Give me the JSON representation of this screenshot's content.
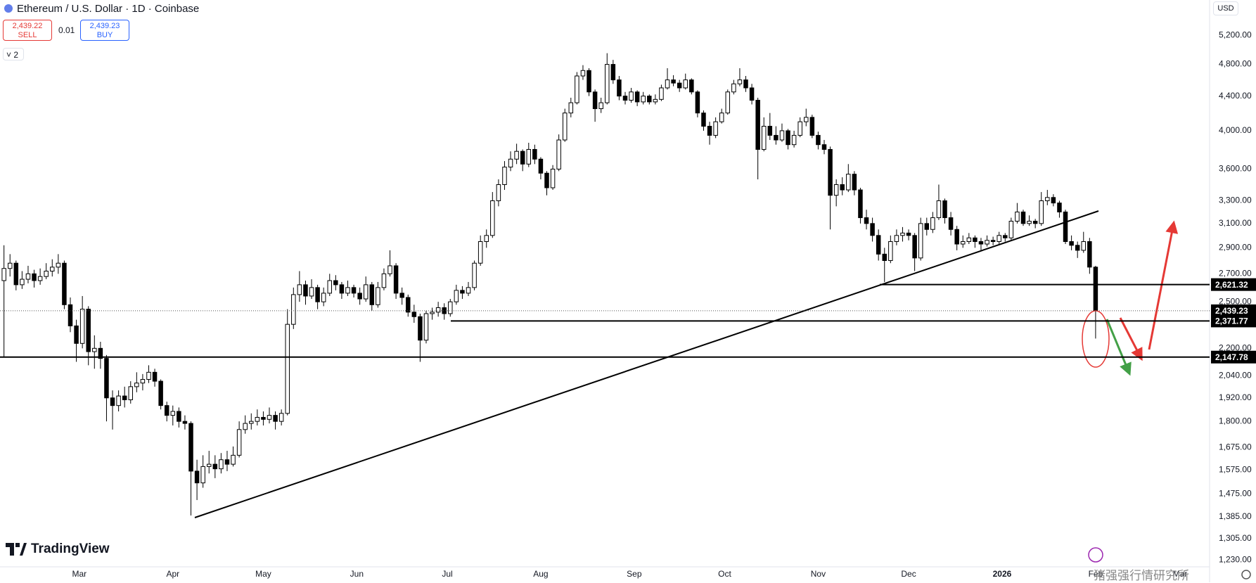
{
  "header": {
    "symbol_title": "Ethereum / U.S. Dollar · 1D · Coinbase",
    "sell": {
      "price": "2,439.22",
      "label": "SELL"
    },
    "spread": "0.01",
    "buy": {
      "price": "2,439.23",
      "label": "BUY"
    },
    "indicators": "2"
  },
  "branding": {
    "logo": "TradingView",
    "watermark": "猪强强行情研究所"
  },
  "chart_data": {
    "type": "candlestick",
    "title": "Ethereum / U.S. Dollar · 1D · Coinbase",
    "currency": "USD",
    "log_scale": true,
    "grid": false,
    "up_color": "#ffffff",
    "down_color": "#000000",
    "outline_color": "#000000",
    "xlim": [
      -0.16,
      200.4
    ],
    "ylim": [
      1207,
      5729
    ],
    "xticks": [
      {
        "value": 13,
        "label": "Mar"
      },
      {
        "value": 28.5,
        "label": "Apr"
      },
      {
        "value": 43.5,
        "label": "May"
      },
      {
        "value": 59,
        "label": "Jun"
      },
      {
        "value": 74,
        "label": "Jul"
      },
      {
        "value": 89.5,
        "label": "Aug"
      },
      {
        "value": 105,
        "label": "Sep"
      },
      {
        "value": 120,
        "label": "Oct"
      },
      {
        "value": 135.5,
        "label": "Nov"
      },
      {
        "value": 150.5,
        "label": "Dec"
      },
      {
        "value": 166,
        "label": "2026",
        "bold": true
      },
      {
        "value": 181.5,
        "label": "Feb"
      },
      {
        "value": 195.5,
        "label": "Mar"
      }
    ],
    "yticks": [
      {
        "value": 5200,
        "label": "5,200.00"
      },
      {
        "value": 4800,
        "label": "4,800.00"
      },
      {
        "value": 4400,
        "label": "4,400.00"
      },
      {
        "value": 4000,
        "label": "4,000.00"
      },
      {
        "value": 3600,
        "label": "3,600.00"
      },
      {
        "value": 3300,
        "label": "3,300.00"
      },
      {
        "value": 3100,
        "label": "3,100.00"
      },
      {
        "value": 2900,
        "label": "2,900.00"
      },
      {
        "value": 2700,
        "label": "2,700.00"
      },
      {
        "value": 2500,
        "label": "2,500.00"
      },
      {
        "value": 2200,
        "label": "2,200.00"
      },
      {
        "value": 2040,
        "label": "2,040.00"
      },
      {
        "value": 1920,
        "label": "1,920.00"
      },
      {
        "value": 1800,
        "label": "1,800.00"
      },
      {
        "value": 1675,
        "label": "1,675.00"
      },
      {
        "value": 1575,
        "label": "1,575.00"
      },
      {
        "value": 1475,
        "label": "1,475.00"
      },
      {
        "value": 1385,
        "label": "1,385.00"
      },
      {
        "value": 1305,
        "label": "1,305.00"
      },
      {
        "value": 1230,
        "label": "1,230.00"
      }
    ],
    "levels": [
      {
        "value": 2621.32,
        "label": "2,621.32"
      },
      {
        "value": 2371.77,
        "label": "2,371.77"
      },
      {
        "value": 2147.78,
        "label": "2,147.78"
      }
    ],
    "last_price": {
      "value": 2439.23,
      "label": "2,439.23"
    },
    "candles": [
      [
        2650,
        2920,
        2150,
        2740
      ],
      [
        2740,
        2850,
        2680,
        2780
      ],
      [
        2780,
        2800,
        2580,
        2620
      ],
      [
        2620,
        2720,
        2590,
        2660
      ],
      [
        2660,
        2760,
        2630,
        2700
      ],
      [
        2700,
        2730,
        2600,
        2650
      ],
      [
        2650,
        2740,
        2620,
        2680
      ],
      [
        2680,
        2780,
        2660,
        2720
      ],
      [
        2720,
        2810,
        2680,
        2750
      ],
      [
        2750,
        2850,
        2700,
        2780
      ],
      [
        2780,
        2800,
        2450,
        2480
      ],
      [
        2480,
        2530,
        2300,
        2340
      ],
      [
        2340,
        2380,
        2120,
        2230
      ],
      [
        2230,
        2540,
        2200,
        2450
      ],
      [
        2450,
        2470,
        2100,
        2180
      ],
      [
        2180,
        2280,
        2080,
        2200
      ],
      [
        2200,
        2240,
        2080,
        2140
      ],
      [
        2140,
        2160,
        1800,
        1920
      ],
      [
        1920,
        1960,
        1760,
        1880
      ],
      [
        1880,
        1960,
        1850,
        1930
      ],
      [
        1930,
        1980,
        1870,
        1910
      ],
      [
        1910,
        2010,
        1890,
        1980
      ],
      [
        1980,
        2060,
        1950,
        2000
      ],
      [
        2000,
        2050,
        1960,
        2020
      ],
      [
        2020,
        2100,
        2000,
        2060
      ],
      [
        2060,
        2080,
        1980,
        2010
      ],
      [
        2010,
        2020,
        1860,
        1880
      ],
      [
        1880,
        1900,
        1800,
        1830
      ],
      [
        1830,
        1880,
        1780,
        1850
      ],
      [
        1850,
        1870,
        1770,
        1800
      ],
      [
        1800,
        1830,
        1760,
        1790
      ],
      [
        1790,
        1800,
        1390,
        1570
      ],
      [
        1570,
        1620,
        1450,
        1520
      ],
      [
        1520,
        1640,
        1500,
        1590
      ],
      [
        1590,
        1660,
        1560,
        1600
      ],
      [
        1600,
        1640,
        1540,
        1580
      ],
      [
        1580,
        1650,
        1560,
        1620
      ],
      [
        1620,
        1660,
        1570,
        1600
      ],
      [
        1600,
        1680,
        1590,
        1640
      ],
      [
        1640,
        1800,
        1630,
        1760
      ],
      [
        1760,
        1830,
        1740,
        1790
      ],
      [
        1790,
        1840,
        1760,
        1800
      ],
      [
        1800,
        1860,
        1780,
        1820
      ],
      [
        1820,
        1850,
        1780,
        1810
      ],
      [
        1810,
        1870,
        1790,
        1830
      ],
      [
        1830,
        1850,
        1760,
        1800
      ],
      [
        1800,
        1860,
        1780,
        1840
      ],
      [
        1840,
        2450,
        1830,
        2350
      ],
      [
        2350,
        2600,
        2320,
        2550
      ],
      [
        2550,
        2720,
        2500,
        2620
      ],
      [
        2620,
        2650,
        2480,
        2540
      ],
      [
        2540,
        2660,
        2520,
        2600
      ],
      [
        2600,
        2620,
        2450,
        2500
      ],
      [
        2500,
        2600,
        2470,
        2560
      ],
      [
        2560,
        2700,
        2540,
        2650
      ],
      [
        2650,
        2690,
        2580,
        2620
      ],
      [
        2620,
        2640,
        2520,
        2560
      ],
      [
        2560,
        2650,
        2540,
        2600
      ],
      [
        2600,
        2620,
        2530,
        2560
      ],
      [
        2560,
        2600,
        2480,
        2520
      ],
      [
        2520,
        2680,
        2500,
        2620
      ],
      [
        2620,
        2640,
        2440,
        2480
      ],
      [
        2480,
        2640,
        2460,
        2600
      ],
      [
        2600,
        2740,
        2580,
        2700
      ],
      [
        2700,
        2880,
        2680,
        2760
      ],
      [
        2760,
        2780,
        2520,
        2560
      ],
      [
        2560,
        2600,
        2480,
        2530
      ],
      [
        2530,
        2550,
        2400,
        2430
      ],
      [
        2430,
        2480,
        2360,
        2400
      ],
      [
        2400,
        2420,
        2120,
        2250
      ],
      [
        2250,
        2440,
        2230,
        2420
      ],
      [
        2420,
        2460,
        2380,
        2430
      ],
      [
        2430,
        2500,
        2400,
        2460
      ],
      [
        2460,
        2490,
        2380,
        2420
      ],
      [
        2420,
        2520,
        2400,
        2500
      ],
      [
        2500,
        2620,
        2480,
        2580
      ],
      [
        2580,
        2610,
        2520,
        2560
      ],
      [
        2560,
        2640,
        2540,
        2600
      ],
      [
        2600,
        2800,
        2580,
        2780
      ],
      [
        2780,
        3000,
        2760,
        2950
      ],
      [
        2950,
        3050,
        2900,
        3000
      ],
      [
        3000,
        3380,
        2980,
        3300
      ],
      [
        3300,
        3500,
        3250,
        3450
      ],
      [
        3450,
        3680,
        3400,
        3620
      ],
      [
        3620,
        3780,
        3580,
        3700
      ],
      [
        3700,
        3860,
        3650,
        3780
      ],
      [
        3780,
        3800,
        3580,
        3650
      ],
      [
        3650,
        3870,
        3620,
        3800
      ],
      [
        3800,
        3850,
        3650,
        3700
      ],
      [
        3700,
        3720,
        3500,
        3560
      ],
      [
        3560,
        3580,
        3350,
        3420
      ],
      [
        3420,
        3640,
        3400,
        3600
      ],
      [
        3600,
        3960,
        3580,
        3900
      ],
      [
        3900,
        4250,
        3880,
        4200
      ],
      [
        4200,
        4380,
        4150,
        4320
      ],
      [
        4320,
        4700,
        4300,
        4650
      ],
      [
        4650,
        4790,
        4600,
        4720
      ],
      [
        4720,
        4750,
        4400,
        4450
      ],
      [
        4450,
        4480,
        4100,
        4250
      ],
      [
        4250,
        4380,
        4200,
        4320
      ],
      [
        4320,
        4950,
        4300,
        4800
      ],
      [
        4800,
        4860,
        4550,
        4600
      ],
      [
        4600,
        4650,
        4350,
        4400
      ],
      [
        4400,
        4450,
        4300,
        4350
      ],
      [
        4350,
        4500,
        4320,
        4450
      ],
      [
        4450,
        4470,
        4280,
        4330
      ],
      [
        4330,
        4450,
        4300,
        4400
      ],
      [
        4400,
        4420,
        4300,
        4330
      ],
      [
        4330,
        4420,
        4300,
        4360
      ],
      [
        4360,
        4540,
        4340,
        4500
      ],
      [
        4500,
        4750,
        4480,
        4600
      ],
      [
        4600,
        4660,
        4520,
        4560
      ],
      [
        4560,
        4600,
        4450,
        4500
      ],
      [
        4500,
        4680,
        4480,
        4600
      ],
      [
        4600,
        4620,
        4420,
        4450
      ],
      [
        4450,
        4470,
        4150,
        4200
      ],
      [
        4200,
        4230,
        4000,
        4050
      ],
      [
        4050,
        4100,
        3850,
        3950
      ],
      [
        3950,
        4150,
        3920,
        4100
      ],
      [
        4100,
        4250,
        4080,
        4200
      ],
      [
        4200,
        4480,
        4180,
        4450
      ],
      [
        4450,
        4600,
        4420,
        4550
      ],
      [
        4550,
        4750,
        4520,
        4600
      ],
      [
        4600,
        4650,
        4450,
        4500
      ],
      [
        4500,
        4550,
        4300,
        4350
      ],
      [
        4350,
        4380,
        3500,
        3800
      ],
      [
        3800,
        4150,
        3780,
        4050
      ],
      [
        4050,
        4200,
        3900,
        3950
      ],
      [
        3950,
        4050,
        3850,
        3900
      ],
      [
        3900,
        4080,
        3880,
        4000
      ],
      [
        4000,
        4020,
        3800,
        3850
      ],
      [
        3850,
        4000,
        3820,
        3950
      ],
      [
        3950,
        4150,
        3930,
        4100
      ],
      [
        4100,
        4250,
        4050,
        4150
      ],
      [
        4150,
        4180,
        3920,
        3950
      ],
      [
        3950,
        3990,
        3800,
        3850
      ],
      [
        3850,
        3900,
        3750,
        3800
      ],
      [
        3800,
        3830,
        3050,
        3350
      ],
      [
        3350,
        3500,
        3250,
        3450
      ],
      [
        3450,
        3520,
        3350,
        3400
      ],
      [
        3400,
        3650,
        3380,
        3550
      ],
      [
        3550,
        3580,
        3350,
        3400
      ],
      [
        3400,
        3420,
        3100,
        3150
      ],
      [
        3150,
        3220,
        3050,
        3100
      ],
      [
        3100,
        3150,
        2950,
        3000
      ],
      [
        3000,
        3050,
        2800,
        2850
      ],
      [
        2850,
        2900,
        2640,
        2800
      ],
      [
        2800,
        3000,
        2780,
        2950
      ],
      [
        2950,
        3050,
        2920,
        3000
      ],
      [
        3000,
        3070,
        2950,
        3020
      ],
      [
        3020,
        3050,
        2960,
        3000
      ],
      [
        3000,
        3020,
        2720,
        2820
      ],
      [
        2820,
        3150,
        2800,
        3100
      ],
      [
        3100,
        3150,
        3000,
        3050
      ],
      [
        3050,
        3200,
        3020,
        3150
      ],
      [
        3150,
        3450,
        3130,
        3300
      ],
      [
        3300,
        3320,
        3100,
        3150
      ],
      [
        3150,
        3200,
        3000,
        3050
      ],
      [
        3050,
        3080,
        2880,
        2930
      ],
      [
        2930,
        3000,
        2900,
        2950
      ],
      [
        2950,
        3020,
        2930,
        2980
      ],
      [
        2980,
        3000,
        2900,
        2950
      ],
      [
        2950,
        2980,
        2880,
        2930
      ],
      [
        2930,
        3000,
        2910,
        2960
      ],
      [
        2960,
        2990,
        2920,
        2950
      ],
      [
        2950,
        3030,
        2930,
        3000
      ],
      [
        3000,
        3020,
        2950,
        2980
      ],
      [
        2980,
        3150,
        2960,
        3120
      ],
      [
        3120,
        3280,
        3100,
        3200
      ],
      [
        3200,
        3220,
        3080,
        3100
      ],
      [
        3100,
        3170,
        3080,
        3120
      ],
      [
        3120,
        3140,
        3060,
        3100
      ],
      [
        3100,
        3380,
        3080,
        3300
      ],
      [
        3300,
        3400,
        3260,
        3330
      ],
      [
        3330,
        3360,
        3250,
        3280
      ],
      [
        3280,
        3300,
        3150,
        3200
      ],
      [
        3200,
        3220,
        2930,
        2950
      ],
      [
        2950,
        3000,
        2880,
        2920
      ],
      [
        2920,
        2950,
        2820,
        2880
      ],
      [
        2880,
        3030,
        2860,
        2950
      ],
      [
        2950,
        2980,
        2700,
        2750
      ],
      [
        2750,
        2760,
        2260,
        2439.23
      ]
    ]
  }
}
